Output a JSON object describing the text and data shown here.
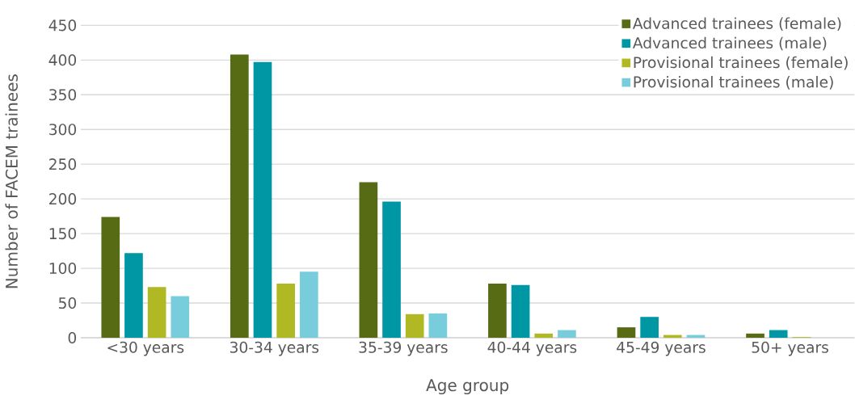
{
  "chart_data": {
    "type": "bar",
    "xlabel": "Age group",
    "ylabel": "Number of FACEM trainees",
    "categories": [
      "<30 years",
      "30-34 years",
      "35-39 years",
      "40-44 years",
      "45-49 years",
      "50+ years"
    ],
    "series": [
      {
        "name": "Advanced trainees (female)",
        "color": "#566b13",
        "values": [
          174,
          408,
          224,
          78,
          15,
          6
        ]
      },
      {
        "name": "Advanced trainees (male)",
        "color": "#0097a5",
        "values": [
          122,
          397,
          196,
          76,
          30,
          11
        ]
      },
      {
        "name": "Provisional trainees (female)",
        "color": "#b0b924",
        "values": [
          73,
          78,
          34,
          6,
          4,
          1
        ]
      },
      {
        "name": "Provisional trainees (male)",
        "color": "#78cddd",
        "values": [
          60,
          95,
          35,
          11,
          4,
          0
        ]
      }
    ],
    "ylim": [
      0,
      450
    ],
    "yticks": [
      0,
      50,
      100,
      150,
      200,
      250,
      300,
      350,
      400,
      450
    ],
    "grid": "y",
    "legend": "top right"
  }
}
